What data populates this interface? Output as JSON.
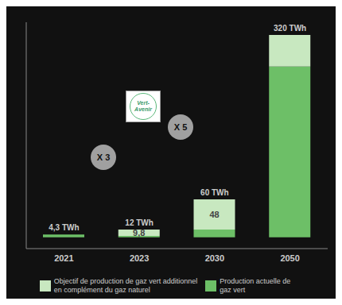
{
  "chart_data": {
    "type": "bar",
    "stacked": true,
    "categories": [
      "2021",
      "2023",
      "2030",
      "2050"
    ],
    "series": [
      {
        "name": "Production actuelle de\ngaz vert",
        "color": "#6dbf67",
        "values": [
          4.3,
          2.2,
          12,
          270
        ]
      },
      {
        "name": "Objectif de production de gaz vert additionnel\nen complément du gaz naturel",
        "color": "#c8e8c0",
        "values": [
          0,
          9.8,
          48,
          50
        ],
        "value_labels": [
          null,
          "9,8",
          "48",
          null
        ]
      }
    ],
    "ylim": [
      -18,
      340
    ],
    "tick_labels": "x",
    "grid": false,
    "annotations": [
      {
        "text": "4,3 TWh",
        "category": "2021",
        "value": 4.3
      },
      {
        "text": "12 TWh",
        "category": "2023",
        "value": 12
      },
      {
        "text": "60 TWh",
        "category": "2030",
        "value": 60
      },
      {
        "text": "320 TWh",
        "category": "2050",
        "value": 320
      },
      {
        "text": "X 3"
      },
      {
        "text": "X 5"
      },
      {
        "text": "Vert-\nAvenir"
      }
    ]
  }
}
